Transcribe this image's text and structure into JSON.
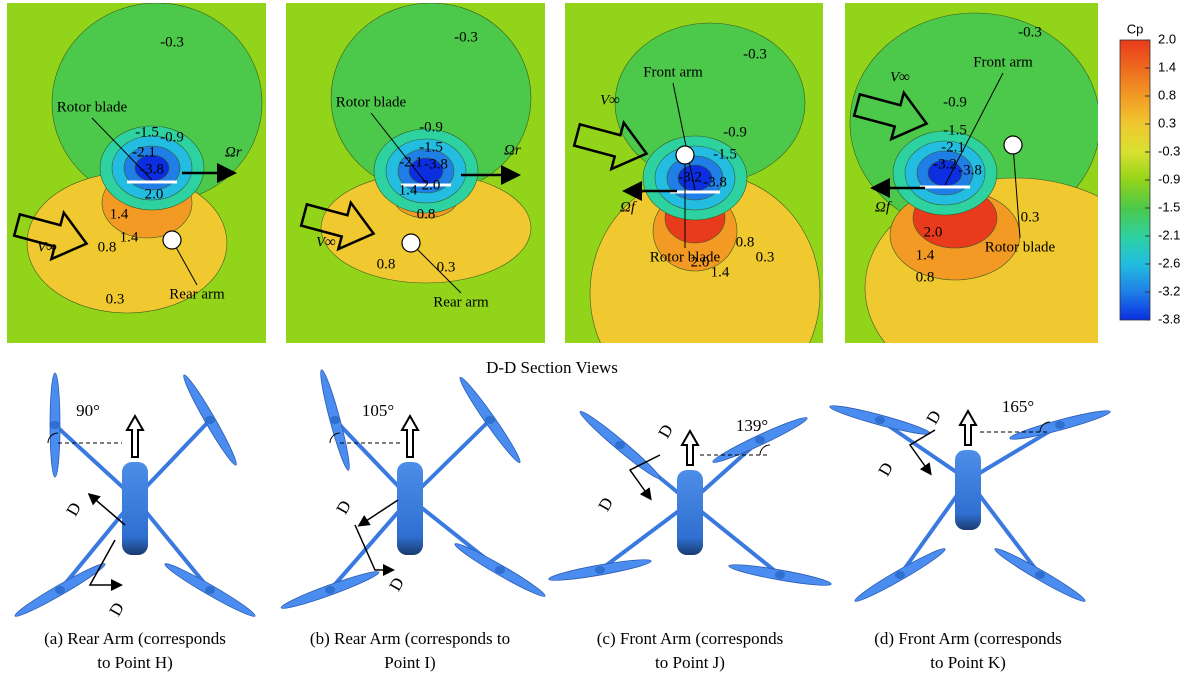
{
  "panels": [
    {
      "contour_labels": [
        "-0.3",
        "-0.9",
        "-1.5",
        "-2.1",
        "-3.8",
        "2.0",
        "1.4",
        "0.8",
        "1.4",
        "0.3"
      ],
      "annotations": [
        "Rotor blade",
        "Rear arm"
      ],
      "freestream": "V∞",
      "rotation": "Ωr"
    },
    {
      "contour_labels": [
        "-0.3",
        "-0.9",
        "-1.5",
        "-2.1",
        "-3.8",
        "1.4",
        "2.0",
        "0.8",
        "0.8",
        "0.3"
      ],
      "annotations": [
        "Rotor blade",
        "Rear arm"
      ],
      "freestream": "V∞",
      "rotation": "Ωr"
    },
    {
      "contour_labels": [
        "-0.3",
        "-0.9",
        "-1.5",
        "-3.2",
        "-3.8",
        "2.0",
        "1.4",
        "0.8",
        "0.3"
      ],
      "annotations": [
        "Front arm",
        "Rotor blade"
      ],
      "freestream": "V∞",
      "rotation": "Ωf"
    },
    {
      "contour_labels": [
        "-0.3",
        "-0.9",
        "-1.5",
        "-2.1",
        "-3.2",
        "-3.8",
        "2.0",
        "1.4",
        "0.8",
        "0.3"
      ],
      "annotations": [
        "Front arm",
        "Rotor blade"
      ],
      "freestream": "V∞",
      "rotation": "Ωf"
    }
  ],
  "colorbar": {
    "title": "Cp",
    "ticks": [
      "2.0",
      "1.4",
      "0.8",
      "0.3",
      "-0.3",
      "-0.9",
      "-1.5",
      "-2.1",
      "-2.6",
      "-3.2",
      "-3.8"
    ],
    "colors": [
      "#e83a1c",
      "#ee6a1e",
      "#f29a24",
      "#f0c830",
      "#d8e030",
      "#92d41a",
      "#4cc84a",
      "#2ed2a0",
      "#22bde0",
      "#1f7fe6",
      "#0a2ee0"
    ]
  },
  "section_title": "D-D Section Views",
  "views": [
    {
      "angle": "90°",
      "section_marks": [
        "D",
        "D"
      ],
      "caption": [
        "(a) Rear Arm (corresponds",
        "to Point H)"
      ]
    },
    {
      "angle": "105°",
      "section_marks": [
        "D",
        "D"
      ],
      "caption": [
        "(b) Rear Arm (corresponds to",
        "Point I)"
      ]
    },
    {
      "angle": "139°",
      "section_marks": [
        "D",
        "D"
      ],
      "caption": [
        "(c) Front Arm (corresponds",
        "to Point J)"
      ]
    },
    {
      "angle": "165°",
      "section_marks": [
        "D",
        "D"
      ],
      "caption": [
        "(d) Front Arm (corresponds",
        "to Point K)"
      ]
    }
  ]
}
